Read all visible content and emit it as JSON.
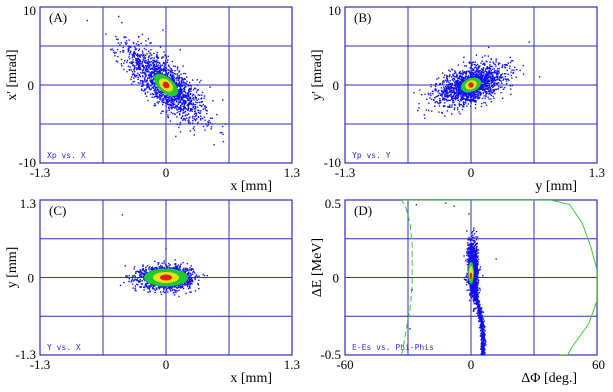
{
  "colors": {
    "frame": "#2f2fb8",
    "grid": "#2f2fb8",
    "particles": "#1010ee",
    "core_green": "#22c830",
    "core_yellow": "#e6e01e",
    "core_red": "#e4201c",
    "acceptance": "#3cc83c",
    "note_text": "#3030d0"
  },
  "chart_data": [
    {
      "type": "scatter",
      "tag": "(A)",
      "note": "Xp vs. X",
      "xlabel": "x [mm]",
      "ylabel": "x' [mrad]",
      "xlim": [
        -1.3,
        1.3
      ],
      "ylim": [
        -10,
        10
      ],
      "x_tick_labels": [
        "-1.3",
        "0",
        "1.3"
      ],
      "y_tick_labels": [
        "-10",
        "0",
        "10"
      ],
      "grid": true,
      "distribution": {
        "center": [
          0,
          0
        ],
        "major_axis_end": [
          0.45,
          -5
        ],
        "spread_major": 0.22,
        "spread_minor": 0.045
      }
    },
    {
      "type": "scatter",
      "tag": "(B)",
      "note": "Yp vs. Y",
      "xlabel": "y [mm]",
      "ylabel": "y' [mrad]",
      "xlim": [
        -1.3,
        1.3
      ],
      "ylim": [
        -10,
        10
      ],
      "x_tick_labels": [
        "-1.3",
        "0",
        "1.3"
      ],
      "y_tick_labels": [
        "-10",
        "0",
        "10"
      ],
      "grid": true,
      "distribution": {
        "center": [
          0,
          0
        ],
        "major_axis_end": [
          0.5,
          2.5
        ],
        "spread_major": 0.2,
        "spread_minor": 0.05
      }
    },
    {
      "type": "scatter",
      "tag": "(C)",
      "note": "Y vs. X",
      "xlabel": "x [mm]",
      "ylabel": "y [mm]",
      "xlim": [
        -1.3,
        1.3
      ],
      "ylim": [
        -1.3,
        1.3
      ],
      "x_tick_labels": [
        "-1.3",
        "0",
        "1.3"
      ],
      "y_tick_labels": [
        "-1.3",
        "0",
        "1.3"
      ],
      "grid": true,
      "distribution": {
        "center": [
          0,
          0
        ],
        "sigma_x": 0.13,
        "sigma_y": 0.09
      }
    },
    {
      "type": "scatter",
      "tag": "(D)",
      "note": "E-Es vs. Phi-Phis",
      "xlabel": "ΔΦ [deg.]",
      "ylabel": "ΔE [MeV]",
      "xlim": [
        -60,
        60
      ],
      "ylim": [
        -0.5,
        0.5
      ],
      "x_tick_labels": [
        "-60",
        "0",
        "60"
      ],
      "y_tick_labels": [
        "-0.5",
        "0",
        "0.5"
      ],
      "grid": true,
      "distribution": {
        "core_center": [
          1,
          0.05
        ],
        "tail_end": [
          5,
          -0.5
        ]
      },
      "acceptance_boundary": {
        "x": [
          -33,
          -31,
          -29,
          -28,
          -28,
          -28,
          -29,
          -31,
          -33,
          -33,
          -28,
          -20,
          0,
          20,
          38,
          47,
          53,
          57,
          60,
          60,
          60,
          56,
          48,
          46,
          42
        ],
        "y": [
          -0.5,
          -0.35,
          -0.2,
          -0.05,
          0.05,
          0.2,
          0.35,
          0.45,
          0.5,
          0.5,
          0.5,
          0.5,
          0.5,
          0.5,
          0.5,
          0.47,
          0.35,
          0.2,
          0.05,
          -0.05,
          -0.15,
          -0.3,
          -0.45,
          -0.5,
          -0.5
        ]
      }
    }
  ]
}
